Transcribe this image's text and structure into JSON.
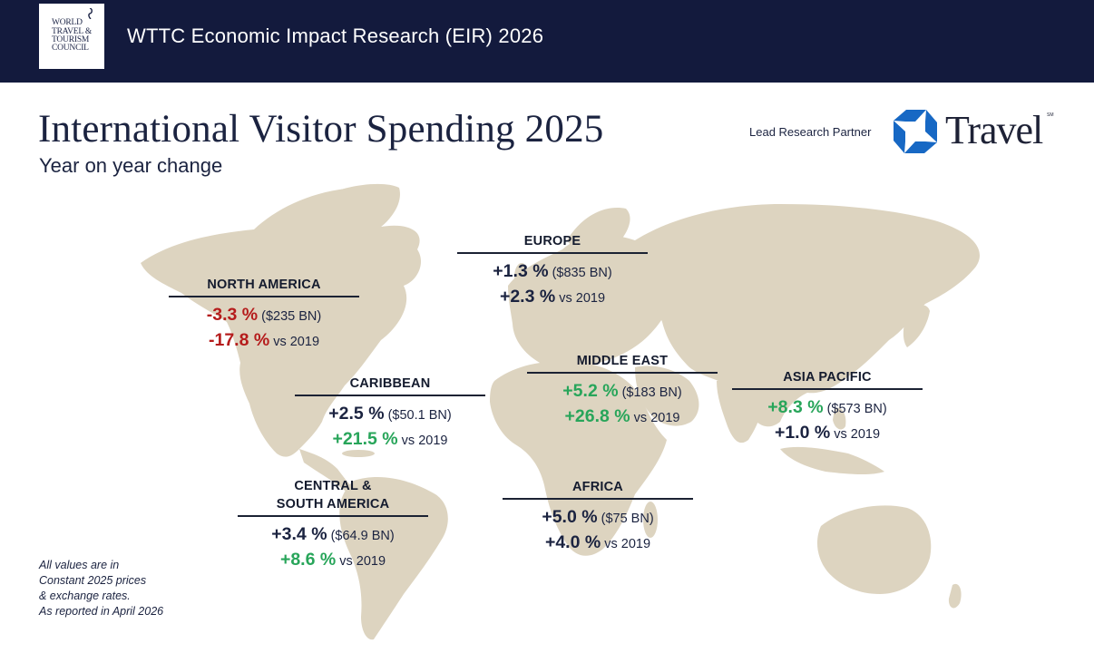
{
  "header": {
    "logo_text": "WORLD\nTRAVEL &\nTOURISM\nCOUNCIL",
    "title": "WTTC Economic Impact Research (EIR) 2026"
  },
  "page": {
    "title": "International Visitor Spending 2025",
    "subtitle": "Year on year change"
  },
  "partner": {
    "label": "Lead Research Partner",
    "name": "Travel",
    "trademark": "SM",
    "brand_color": "#1768c4"
  },
  "colors": {
    "negative": "#b51c1c",
    "positive": "#28a55a",
    "neutral": "#1b2340",
    "land": "#ddd4c0"
  },
  "regions": {
    "north_america": {
      "name": "NORTH AMERICA",
      "change": "-3.3 %",
      "spend": "($235 BN)",
      "vs_change": "-17.8 %",
      "vs_label": "vs 2019"
    },
    "europe": {
      "name": "EUROPE",
      "change": "+1.3 %",
      "spend": "($835 BN)",
      "vs_change": "+2.3 %",
      "vs_label": "vs 2019"
    },
    "middle_east": {
      "name": "MIDDLE EAST",
      "change": "+5.2 %",
      "spend": "($183 BN)",
      "vs_change": "+26.8 %",
      "vs_label": "vs 2019"
    },
    "asia_pacific": {
      "name": "ASIA PACIFIC",
      "change": "+8.3 %",
      "spend": "($573 BN)",
      "vs_change": "+1.0 %",
      "vs_label": "vs 2019"
    },
    "caribbean": {
      "name": "CARIBBEAN",
      "change": "+2.5 %",
      "spend": "($50.1 BN)",
      "vs_change": "+21.5 %",
      "vs_label": "vs 2019"
    },
    "africa": {
      "name": "AFRICA",
      "change": "+5.0 %",
      "spend": "($75 BN)",
      "vs_change": "+4.0 %",
      "vs_label": "vs 2019"
    },
    "central_south_america": {
      "name": "CENTRAL &\nSOUTH AMERICA",
      "change": "+3.4 %",
      "spend": "($64.9 BN)",
      "vs_change": "+8.6 %",
      "vs_label": "vs 2019"
    }
  },
  "footnote": {
    "line1": "All values are in",
    "line2": "Constant 2025 prices",
    "line3": "& exchange rates.",
    "line4": "As reported in April 2026"
  }
}
